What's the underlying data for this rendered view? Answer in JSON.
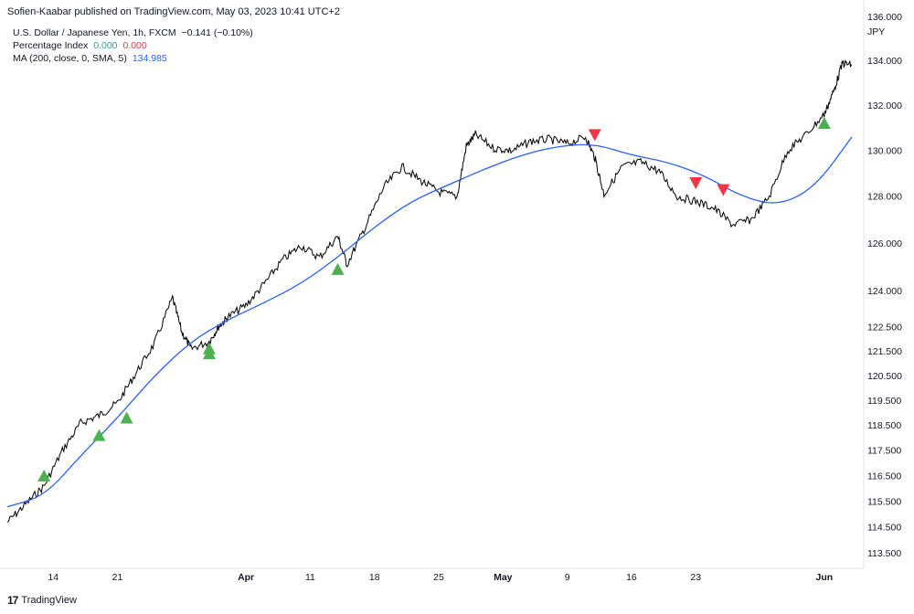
{
  "header": {
    "publisher": "Sofien-Kaabar published on TradingView.com, May 03, 2023 10:41 UTC+2"
  },
  "legend": {
    "symbol": "U.S. Dollar / Japanese Yen, 1h, FXCM",
    "change": "−0.141 (−0.10%)",
    "indicator_name": "Percentage Index",
    "indicator_value_1": "0.000",
    "indicator_value_2": "0.000",
    "ma_name": "MA (200, close, 0, SMA, 5)",
    "ma_value": "134.985"
  },
  "footer": {
    "logo": "17",
    "brand": "TradingView"
  },
  "chart_data": {
    "type": "line",
    "currency_label": "JPY",
    "y_ticks": [
      "136.000",
      "134.000",
      "132.000",
      "130.000",
      "128.000",
      "126.000",
      "124.000",
      "122.500",
      "121.500",
      "120.500",
      "119.500",
      "118.500",
      "117.500",
      "116.500",
      "115.500",
      "114.500",
      "113.500"
    ],
    "x_ticks": [
      "14",
      "21",
      "Apr",
      "11",
      "18",
      "25",
      "May",
      "9",
      "16",
      "23",
      "Jun"
    ],
    "y_scale": "log",
    "ylim": [
      113.0,
      136.6
    ],
    "x_range": [
      "Mar 09",
      "Jun 10"
    ],
    "colors": {
      "price": "#000000",
      "ma": "#2962ff",
      "buy": "#4caf50",
      "sell": "#f23645"
    },
    "series": [
      {
        "kind": "price",
        "x": [
          "Mar 09",
          "Mar 11",
          "Mar 13",
          "Mar 15",
          "Mar 17",
          "Mar 19",
          "Mar 21",
          "Mar 23",
          "Mar 25",
          "Mar 27",
          "Mar 28",
          "Mar 29",
          "Mar 31",
          "Apr 01",
          "Apr 02",
          "Apr 04",
          "Apr 06",
          "Apr 08",
          "Apr 10",
          "Apr 12",
          "Apr 14",
          "Apr 15",
          "Apr 17",
          "Apr 19",
          "Apr 21",
          "Apr 23",
          "Apr 25",
          "Apr 27",
          "Apr 28",
          "Apr 29",
          "May 01",
          "May 03",
          "May 05",
          "May 07",
          "May 09",
          "May 11",
          "May 12",
          "May 13",
          "May 15",
          "May 17",
          "May 19",
          "May 21",
          "May 23",
          "May 25",
          "May 27",
          "May 29",
          "May 31",
          "Jun 02",
          "Jun 04",
          "Jun 06",
          "Jun 07",
          "Jun 08",
          "Jun 09"
        ],
        "y": [
          114.7,
          115.4,
          116.1,
          117.5,
          118.6,
          118.9,
          119.4,
          120.6,
          121.8,
          123.7,
          122.3,
          121.6,
          121.9,
          122.5,
          122.9,
          123.4,
          124.3,
          125.3,
          125.9,
          125.4,
          126.3,
          125.1,
          126.7,
          128.4,
          129.3,
          128.7,
          128.2,
          128.0,
          130.2,
          130.7,
          130.1,
          130.0,
          130.4,
          130.5,
          130.3,
          130.6,
          129.7,
          128.1,
          129.3,
          129.5,
          129.1,
          128.0,
          127.8,
          127.5,
          126.8,
          127.0,
          128.0,
          130.0,
          130.7,
          131.6,
          132.6,
          133.9,
          133.8
        ]
      },
      {
        "kind": "ma",
        "x": [
          "Mar 09",
          "Mar 13",
          "Mar 17",
          "Mar 21",
          "Mar 25",
          "Mar 29",
          "Apr 02",
          "Apr 06",
          "Apr 10",
          "Apr 14",
          "Apr 18",
          "Apr 22",
          "Apr 26",
          "Apr 30",
          "May 04",
          "May 08",
          "May 12",
          "May 16",
          "May 20",
          "May 24",
          "May 28",
          "Jun 01",
          "Jun 05",
          "Jun 09"
        ],
        "y": [
          115.3,
          115.7,
          117.3,
          118.8,
          120.5,
          121.9,
          122.8,
          123.5,
          124.3,
          125.4,
          126.7,
          127.8,
          128.5,
          129.2,
          129.8,
          130.2,
          130.3,
          129.8,
          129.5,
          128.9,
          128.0,
          127.6,
          128.4,
          130.6
        ]
      }
    ],
    "markers": {
      "buy": [
        {
          "x": "Mar 13",
          "y": 116.5
        },
        {
          "x": "Mar 19",
          "y": 118.1
        },
        {
          "x": "Mar 22",
          "y": 118.8
        },
        {
          "x": "Mar 31",
          "y": 121.4
        },
        {
          "x": "Mar 31",
          "y": 121.6
        },
        {
          "x": "Apr 14",
          "y": 124.9
        },
        {
          "x": "Jun 06",
          "y": 131.2
        }
      ],
      "sell": [
        {
          "x": "May 12",
          "y": 130.7
        },
        {
          "x": "May 23",
          "y": 128.6
        },
        {
          "x": "May 26",
          "y": 128.3
        }
      ]
    }
  }
}
